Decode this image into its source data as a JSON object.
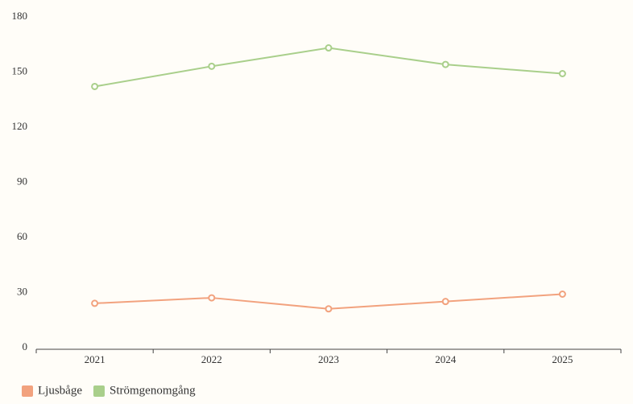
{
  "chart_data": {
    "type": "line",
    "categories": [
      "2021",
      "2022",
      "2023",
      "2024",
      "2025"
    ],
    "series": [
      {
        "name": "Ljusbåge",
        "color": "#f2a27e",
        "values": [
          25,
          28,
          22,
          26,
          30
        ]
      },
      {
        "name": "Strömgenomgång",
        "color": "#a9cf8b",
        "values": [
          143,
          154,
          164,
          155,
          150
        ]
      }
    ],
    "ylim": [
      0,
      180
    ],
    "yticks": [
      0,
      30,
      60,
      90,
      120,
      150,
      180
    ],
    "grid": false,
    "legend": "bottom-left"
  }
}
